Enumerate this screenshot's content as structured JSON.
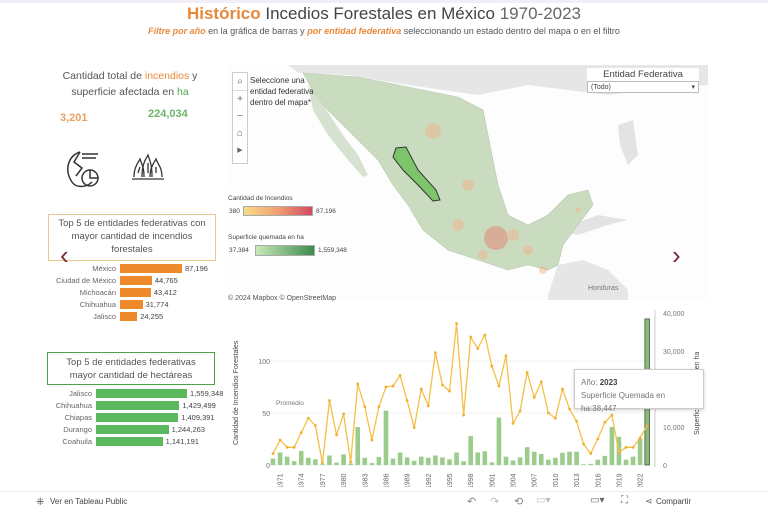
{
  "header": {
    "title_highlight": "Histórico",
    "title_main": "Incedios Forestales en México",
    "title_years": "1970-2023",
    "subtitle_a": "Filtre por año",
    "subtitle_b": " en la gráfica de barras  y ",
    "subtitle_c": "por entidad federativa",
    "subtitle_d": " seleccionando un estado dentro del mapa o en el filtro"
  },
  "kpi": {
    "title_a": "Cantidad total de ",
    "title_b": "incendios",
    "title_c": " y superficie afectada en ",
    "title_d": "ha",
    "fires": "3,201",
    "hectares": "224,034",
    "icons": [
      "fire-globe-icon",
      "forest-fire-icon"
    ]
  },
  "top_fires": {
    "title": "Top 5  de entidades federativas  con mayor cantidad de incendios forestales",
    "color": "#ee8a2c",
    "items": [
      {
        "label": "México",
        "value": 87196,
        "text": "87,196"
      },
      {
        "label": "Ciudad de México",
        "value": 44765,
        "text": "44,765"
      },
      {
        "label": "Michoacán",
        "value": 43412,
        "text": "43,412"
      },
      {
        "label": "Chihuahua",
        "value": 31774,
        "text": "31,774"
      },
      {
        "label": "Jalisco",
        "value": 24255,
        "text": "24,255"
      }
    ]
  },
  "top_ha": {
    "title": "Top 5 de entidades federativas mayor cantidad de hectáreas",
    "color": "#5cb85c",
    "items": [
      {
        "label": "Jalisco",
        "value": 1559348,
        "text": "1,559,348"
      },
      {
        "label": "Chihuahua",
        "value": 1429499,
        "text": "1,429,499"
      },
      {
        "label": "Chiapas",
        "value": 1409391,
        "text": "1,409,391"
      },
      {
        "label": "Durango",
        "value": 1244263,
        "text": "1,244,263"
      },
      {
        "label": "Coahuila",
        "value": 1141191,
        "text": "1,141,191"
      }
    ]
  },
  "map": {
    "hint": "Seleccione una entidad federativa dentro del mapa*",
    "controls": [
      "search-icon",
      "zoom-in-icon",
      "zoom-out-icon",
      "home-icon",
      "play-icon"
    ],
    "legend_fires": {
      "title": "Cantidad de Incendios",
      "min": "380",
      "max": "87,196"
    },
    "legend_ha": {
      "title": "Superficie quemada en ha",
      "min": "37,384",
      "max": "1,559,348"
    },
    "place_label": "Honduras",
    "attribution": "© 2024 Mapbox  © OpenStreetMap",
    "selected_state": "Sinaloa"
  },
  "filter": {
    "label": "Entidad Federativa",
    "value": "(Todo)"
  },
  "nav": {
    "prev": "‹",
    "next": "›"
  },
  "chart_data": {
    "type": "bar+line",
    "ylabel_left": "Cantidad de Incendios Forestales",
    "ylabel_right": "Superficie Quemada en ha",
    "left_ticks": [
      0,
      50,
      100
    ],
    "right_ticks": [
      "0",
      "10,000",
      "20,000",
      "30,000",
      "40,000"
    ],
    "right_values": [
      0,
      10000,
      20000,
      30000,
      40000
    ],
    "x_tick_labels": [
      "1971",
      "1974",
      "1977",
      "1980",
      "1983",
      "1986",
      "1989",
      "1992",
      "1995",
      "1998",
      "2001",
      "2004",
      "2007",
      "2010",
      "2013",
      "2016",
      "2019",
      "2022"
    ],
    "annotation": "Promedio",
    "years": [
      1970,
      1971,
      1972,
      1973,
      1974,
      1975,
      1976,
      1977,
      1978,
      1979,
      1980,
      1981,
      1982,
      1983,
      1984,
      1985,
      1986,
      1987,
      1988,
      1989,
      1990,
      1991,
      1992,
      1993,
      1994,
      1995,
      1996,
      1997,
      1998,
      1999,
      2000,
      2001,
      2002,
      2003,
      2004,
      2005,
      2006,
      2007,
      2008,
      2009,
      2010,
      2011,
      2012,
      2013,
      2014,
      2015,
      2016,
      2017,
      2018,
      2019,
      2020,
      2021,
      2022,
      2023
    ],
    "fires": [
      11,
      24,
      17,
      17,
      31,
      45,
      38,
      2,
      62,
      29,
      49,
      3,
      78,
      56,
      24,
      56,
      75,
      76,
      86,
      62,
      36,
      73,
      57,
      108,
      77,
      71,
      136,
      48,
      123,
      112,
      125,
      95,
      76,
      105,
      40,
      52,
      89,
      65,
      80,
      50,
      45,
      73,
      54,
      42,
      20,
      11,
      25,
      41,
      48,
      12,
      17,
      17,
      26,
      38
    ],
    "hectares": [
      1700,
      3300,
      2200,
      1000,
      3700,
      1900,
      1500,
      200,
      2500,
      600,
      2800,
      400,
      10000,
      1900,
      500,
      2100,
      14300,
      1700,
      3300,
      2000,
      1100,
      2200,
      1900,
      2500,
      2000,
      1500,
      3300,
      1000,
      7600,
      3300,
      3600,
      700,
      12500,
      2200,
      1200,
      2000,
      4700,
      3500,
      2900,
      1400,
      1900,
      3200,
      3500,
      3500,
      200,
      300,
      1400,
      2400,
      10000,
      7400,
      1400,
      2200,
      6900,
      38447
    ],
    "highlight_year": 2023,
    "line_color": "#f5c04a",
    "bar_color": "#9ccc8c"
  },
  "tooltip": {
    "year_label": "Año: ",
    "year": "2023",
    "value_label": "Superficie Quemada en ha:",
    "value": "38,447"
  },
  "toolbar": {
    "view_public": "Ver en Tableau Public",
    "share": "Compartir",
    "icons": [
      "undo-icon",
      "redo-icon",
      "revert-icon",
      "refresh-icon",
      "comment-icon",
      "fullscreen-icon",
      "share-icon"
    ]
  }
}
